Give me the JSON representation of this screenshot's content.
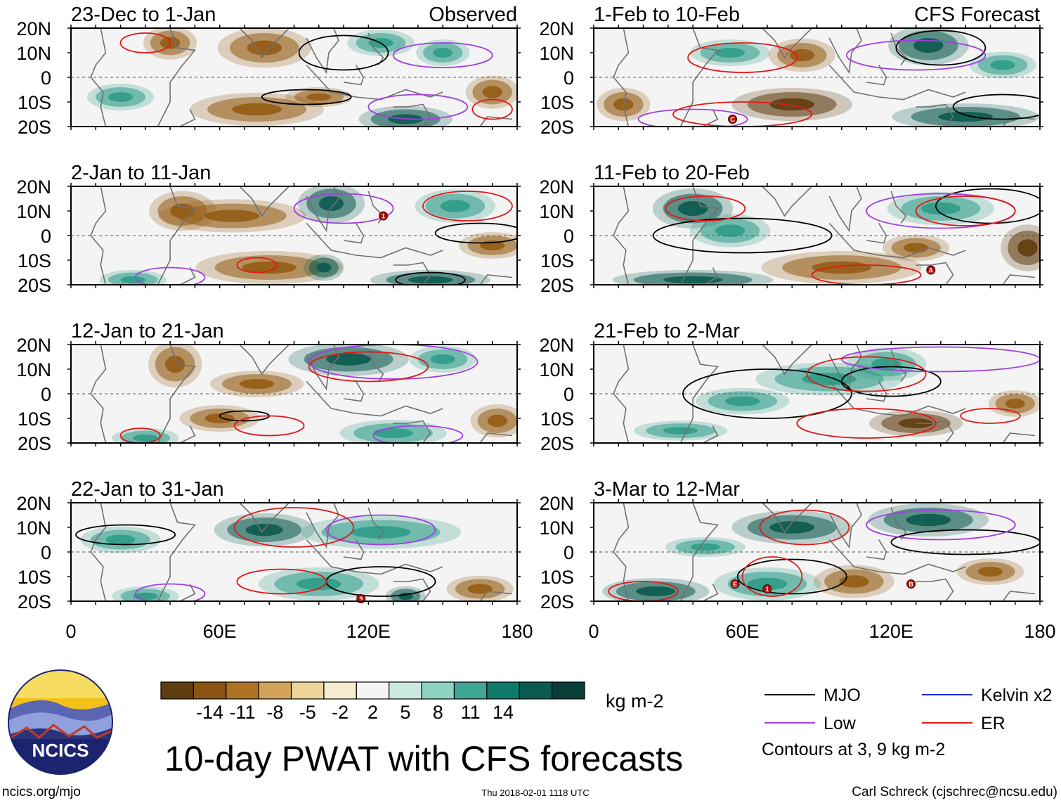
{
  "title": "10-day PWAT with CFS forecasts",
  "logo_text": "NCICS",
  "footer": {
    "left": "ncics.org/mjo",
    "center": "Thu 2018-02-01 1118 UTC",
    "right": "Carl Schreck (cjschrec@ncsu.edu)"
  },
  "colors": {
    "brown_dark": "#603d0f",
    "brown_mid": "#935c15",
    "teal_dark": "#0c5a4f",
    "teal_mid": "#2f9c88",
    "mjo": "#000000",
    "low": "#a040e0",
    "kelvin": "#1f2fd8",
    "er": "#e01818"
  },
  "colorbar": {
    "unit": "kg m-2",
    "colors": [
      "#603d0f",
      "#8a5412",
      "#ae7324",
      "#d2a45a",
      "#ecd49b",
      "#f6ecd2",
      "#f4f4f4",
      "#cdeae2",
      "#8fd3c2",
      "#3fa794",
      "#0f7a6c",
      "#0b5a50",
      "#073e37"
    ],
    "ticks": [
      "-14",
      "-11",
      "-8",
      "-5",
      "-2",
      "2",
      "5",
      "8",
      "11",
      "14"
    ]
  },
  "legend": {
    "note": "Contours at 3, 9 kg m-2",
    "items": [
      {
        "label": "MJO",
        "color": "#000000"
      },
      {
        "label": "Kelvin x2",
        "color": "#1f2fd8"
      },
      {
        "label": "Low",
        "color": "#a040e0"
      },
      {
        "label": "ER",
        "color": "#e01818"
      }
    ]
  },
  "chart_data": [
    {
      "type": "heatmap",
      "variable": "PWAT anomaly",
      "column": "left",
      "title": "23-Dec to 1-Jan",
      "label_right": "Observed",
      "xlim": [
        0,
        180
      ],
      "ylim": [
        -20,
        20
      ],
      "yticks": [
        "20N",
        "10N",
        "0",
        "10S",
        "20S"
      ],
      "xticks": [
        "0",
        "60E",
        "120E",
        "180"
      ],
      "storm_markers": []
    },
    {
      "type": "heatmap",
      "variable": "PWAT anomaly",
      "column": "left",
      "title": "2-Jan to 11-Jan",
      "label_right": "",
      "xlim": [
        0,
        180
      ],
      "ylim": [
        -20,
        20
      ],
      "yticks": [
        "20N",
        "10N",
        "0",
        "10S",
        "20S"
      ],
      "xticks": [
        "0",
        "60E",
        "120E",
        "180"
      ],
      "storm_markers": [
        {
          "label": "1",
          "lon": 126,
          "lat": 8
        }
      ]
    },
    {
      "type": "heatmap",
      "variable": "PWAT anomaly",
      "column": "left",
      "title": "12-Jan to 21-Jan",
      "label_right": "",
      "xlim": [
        0,
        180
      ],
      "ylim": [
        -20,
        20
      ],
      "yticks": [
        "20N",
        "10N",
        "0",
        "10S",
        "20S"
      ],
      "xticks": [
        "0",
        "60E",
        "120E",
        "180"
      ],
      "storm_markers": []
    },
    {
      "type": "heatmap",
      "variable": "PWAT anomaly",
      "column": "left",
      "title": "22-Jan to 31-Jan",
      "label_right": "",
      "xlim": [
        0,
        180
      ],
      "ylim": [
        -20,
        20
      ],
      "yticks": [
        "20N",
        "10N",
        "0",
        "10S",
        "20S"
      ],
      "xticks": [
        "0",
        "60E",
        "120E",
        "180"
      ],
      "storm_markers": [
        {
          "label": "3",
          "lon": 117,
          "lat": -19
        }
      ]
    },
    {
      "type": "heatmap",
      "variable": "PWAT anomaly",
      "column": "right",
      "title": "1-Feb to 10-Feb",
      "label_right": "CFS Forecast",
      "xlim": [
        0,
        180
      ],
      "ylim": [
        -20,
        20
      ],
      "yticks": [
        "20N",
        "10N",
        "0",
        "10S",
        "20S"
      ],
      "xticks": [
        "0",
        "60E",
        "120E",
        "180"
      ],
      "storm_markers": [
        {
          "label": "C",
          "lon": 56,
          "lat": -17
        }
      ]
    },
    {
      "type": "heatmap",
      "variable": "PWAT anomaly",
      "column": "right",
      "title": "11-Feb to 20-Feb",
      "label_right": "",
      "xlim": [
        0,
        180
      ],
      "ylim": [
        -20,
        20
      ],
      "yticks": [
        "20N",
        "10N",
        "0",
        "10S",
        "20S"
      ],
      "xticks": [
        "0",
        "60E",
        "120E",
        "180"
      ],
      "storm_markers": [
        {
          "label": "A",
          "lon": 136,
          "lat": -14
        }
      ]
    },
    {
      "type": "heatmap",
      "variable": "PWAT anomaly",
      "column": "right",
      "title": "21-Feb to 2-Mar",
      "label_right": "",
      "xlim": [
        0,
        180
      ],
      "ylim": [
        -20,
        20
      ],
      "yticks": [
        "20N",
        "10N",
        "0",
        "10S",
        "20S"
      ],
      "xticks": [
        "0",
        "60E",
        "120E",
        "180"
      ],
      "storm_markers": []
    },
    {
      "type": "heatmap",
      "variable": "PWAT anomaly",
      "column": "right",
      "title": "3-Mar to 12-Mar",
      "label_right": "",
      "xlim": [
        0,
        180
      ],
      "ylim": [
        -20,
        20
      ],
      "yticks": [
        "20N",
        "10N",
        "0",
        "10S",
        "20S"
      ],
      "xticks": [
        "0",
        "60E",
        "120E",
        "180"
      ],
      "storm_markers": [
        {
          "label": "E",
          "lon": 57,
          "lat": -13
        },
        {
          "label": "1",
          "lon": 70,
          "lat": -15
        },
        {
          "label": "B",
          "lon": 128,
          "lat": -13
        }
      ]
    }
  ]
}
